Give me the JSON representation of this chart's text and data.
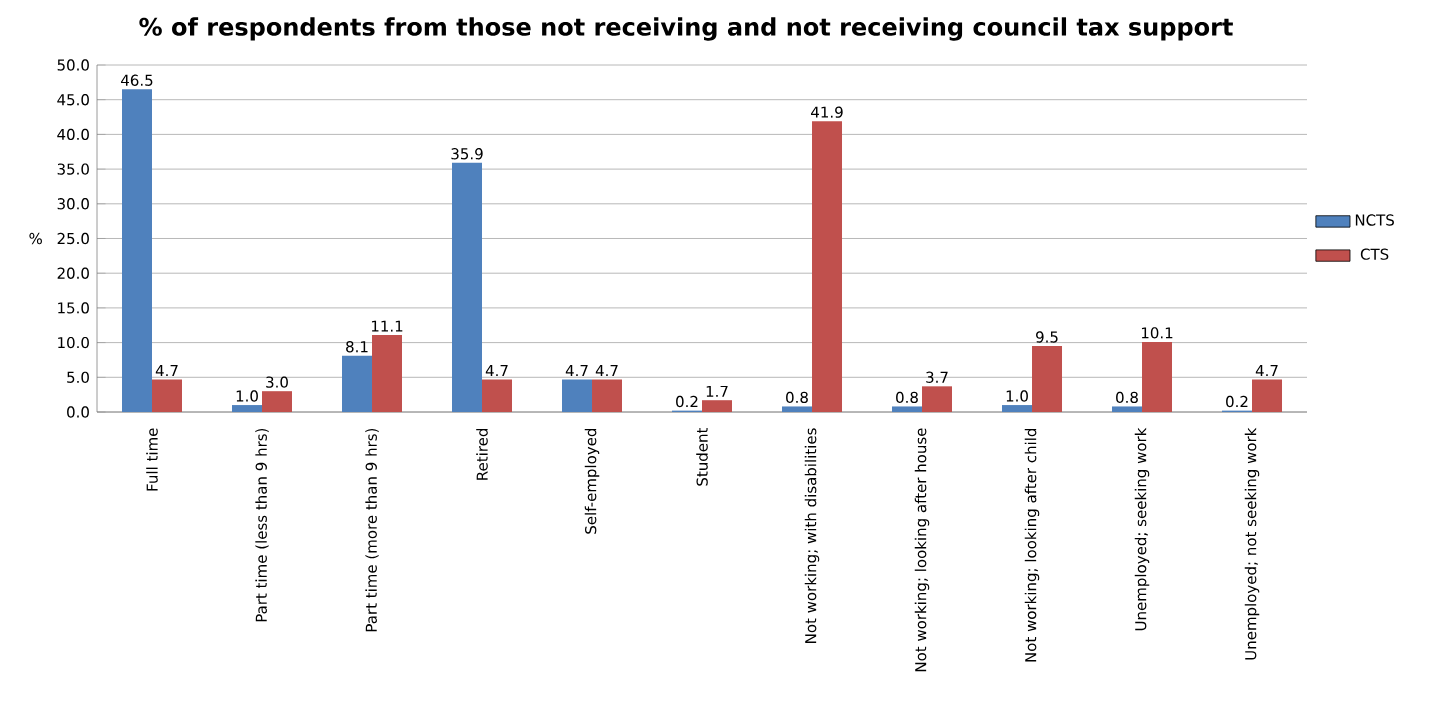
{
  "chart_data": {
    "type": "bar",
    "title": "% of respondents from those not receiving and not receiving council tax support",
    "ylabel": "%",
    "categories": [
      "Full time",
      "Part time (less than 9 hrs)",
      "Part time (more than 9 hrs)",
      "Retired",
      "Self-employed",
      "Student",
      "Not working; with disabilities",
      "Not working; looking after house",
      "Not working; looking after child",
      "Unemployed;  seeking work",
      "Unemployed; not seeking work"
    ],
    "series": [
      {
        "name": "NCTS",
        "color": "#4f81bd",
        "values": [
          46.5,
          1.0,
          8.1,
          35.9,
          4.7,
          0.2,
          0.8,
          0.8,
          1.0,
          0.8,
          0.2
        ],
        "value_labels": [
          "46.5",
          "1.0",
          "8.1",
          "35.9",
          "4.7",
          "0.2",
          "0.8",
          "0.8",
          "1.0",
          "0.8",
          "0.2"
        ]
      },
      {
        "name": "CTS",
        "color": "#c0504d",
        "values": [
          4.7,
          3.0,
          11.1,
          4.7,
          4.7,
          1.7,
          41.9,
          3.7,
          9.5,
          10.1,
          4.7
        ],
        "value_labels": [
          "4.7",
          "3.0",
          "11.1",
          "4.7",
          "4.7",
          "1.7",
          "41.9",
          "3.7",
          "9.5",
          "10.1",
          "4.7"
        ]
      }
    ],
    "ylim": [
      0,
      50
    ],
    "yticks": [
      {
        "value": 0,
        "label": "0.0"
      },
      {
        "value": 5,
        "label": "5.0"
      },
      {
        "value": 10,
        "label": "10.0"
      },
      {
        "value": 15,
        "label": "15.0"
      },
      {
        "value": 20,
        "label": "20.0"
      },
      {
        "value": 25,
        "label": "25.0"
      },
      {
        "value": 30,
        "label": "30.0"
      },
      {
        "value": 35,
        "label": "35.0"
      },
      {
        "value": 40,
        "label": "40.0"
      },
      {
        "value": 45,
        "label": "45.0"
      },
      {
        "value": 50,
        "label": "50.0"
      }
    ],
    "grid": "y",
    "legend": "right"
  }
}
